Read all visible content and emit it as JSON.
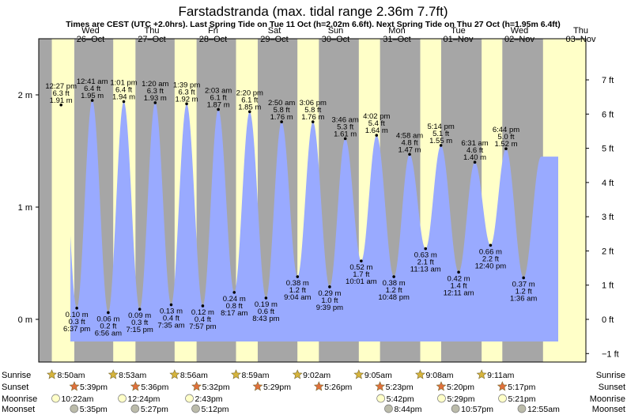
{
  "page": {
    "title": "Farstadstranda (max. tidal range 2.36m 7.7ft)",
    "subtitle": "Times are CEST (UTC +2.0hrs). Last Spring Tide on Tue 11 Oct (h=2.02m 6.6ft). Next Spring Tide on Thu 27 Oct (h=1.95m 6.4ft)"
  },
  "colors": {
    "night": "#a6a6a6",
    "day": "#ffffc8",
    "tide_fill": "#99aaff",
    "day_label": "#e00000",
    "sun_star": "#d6b43c",
    "sunset_star": "#e0703c",
    "moonrise": "#ffffc8",
    "moonset": "#bbbbaa"
  },
  "chart_data": {
    "type": "area",
    "title": "Farstadstranda (max. tidal range 2.36m 7.7ft)",
    "y_left_ticks": [
      "0 m",
      "1 m",
      "2 m"
    ],
    "y_right_ticks": [
      "−1 ft",
      "0 ft",
      "1 ft",
      "2 ft",
      "3 ft",
      "4 ft",
      "5 ft",
      "6 ft",
      "7 ft"
    ],
    "days": [
      {
        "dow": "Wed",
        "date": "26–Oct"
      },
      {
        "dow": "Thu",
        "date": "27–Oct"
      },
      {
        "dow": "Fri",
        "date": "28–Oct"
      },
      {
        "dow": "Sat",
        "date": "29–Oct"
      },
      {
        "dow": "Sun",
        "date": "30–Oct"
      },
      {
        "dow": "Mon",
        "date": "31–Oct"
      },
      {
        "dow": "Tue",
        "date": "01–Nov"
      },
      {
        "dow": "Wed",
        "date": "02–Nov"
      },
      {
        "dow": "Thu",
        "date": "03–Nov"
      }
    ],
    "tides": [
      {
        "type": "high",
        "time": "12:27 pm",
        "ft": "6.3 ft",
        "m": "1.91 m",
        "day": 0,
        "hour": 12.45,
        "h": 1.91
      },
      {
        "type": "low",
        "time": "6:37 pm",
        "ft": "0.3 ft",
        "m": "0.10 m",
        "day": 0,
        "hour": 18.62,
        "h": 0.1
      },
      {
        "type": "high",
        "time": "12:41 am",
        "ft": "6.4 ft",
        "m": "1.95 m",
        "day": 1,
        "hour": 0.68,
        "h": 1.95
      },
      {
        "type": "low",
        "time": "6:56 am",
        "ft": "0.2 ft",
        "m": "0.06 m",
        "day": 1,
        "hour": 6.93,
        "h": 0.06
      },
      {
        "type": "high",
        "time": "1:01 pm",
        "ft": "6.4 ft",
        "m": "1.94 m",
        "day": 1,
        "hour": 13.02,
        "h": 1.94
      },
      {
        "type": "low",
        "time": "7:15 pm",
        "ft": "0.3 ft",
        "m": "0.09 m",
        "day": 1,
        "hour": 19.25,
        "h": 0.09
      },
      {
        "type": "high",
        "time": "1:20 am",
        "ft": "6.3 ft",
        "m": "1.93 m",
        "day": 2,
        "hour": 1.33,
        "h": 1.93
      },
      {
        "type": "low",
        "time": "7:35 am",
        "ft": "0.4 ft",
        "m": "0.13 m",
        "day": 2,
        "hour": 7.58,
        "h": 0.13
      },
      {
        "type": "high",
        "time": "1:39 pm",
        "ft": "6.3 ft",
        "m": "1.92 m",
        "day": 2,
        "hour": 13.65,
        "h": 1.92
      },
      {
        "type": "low",
        "time": "7:57 pm",
        "ft": "0.4 ft",
        "m": "0.12 m",
        "day": 2,
        "hour": 19.95,
        "h": 0.12
      },
      {
        "type": "high",
        "time": "2:03 am",
        "ft": "6.1 ft",
        "m": "1.87 m",
        "day": 3,
        "hour": 2.05,
        "h": 1.87
      },
      {
        "type": "low",
        "time": "8:17 am",
        "ft": "0.8 ft",
        "m": "0.24 m",
        "day": 3,
        "hour": 8.28,
        "h": 0.24
      },
      {
        "type": "high",
        "time": "2:20 pm",
        "ft": "6.1 ft",
        "m": "1.85 m",
        "day": 3,
        "hour": 14.33,
        "h": 1.85
      },
      {
        "type": "low",
        "time": "8:43 pm",
        "ft": "0.6 ft",
        "m": "0.19 m",
        "day": 3,
        "hour": 20.72,
        "h": 0.19
      },
      {
        "type": "high",
        "time": "2:50 am",
        "ft": "5.8 ft",
        "m": "1.76 m",
        "day": 4,
        "hour": 2.83,
        "h": 1.76
      },
      {
        "type": "low",
        "time": "9:04 am",
        "ft": "1.2 ft",
        "m": "0.38 m",
        "day": 4,
        "hour": 9.07,
        "h": 0.38
      },
      {
        "type": "high",
        "time": "3:06 pm",
        "ft": "5.8 ft",
        "m": "1.76 m",
        "day": 4,
        "hour": 15.1,
        "h": 1.76
      },
      {
        "type": "low",
        "time": "9:39 pm",
        "ft": "1.0 ft",
        "m": "0.29 m",
        "day": 4,
        "hour": 21.65,
        "h": 0.29
      },
      {
        "type": "high",
        "time": "3:46 am",
        "ft": "5.3 ft",
        "m": "1.61 m",
        "day": 5,
        "hour": 3.77,
        "h": 1.61
      },
      {
        "type": "low",
        "time": "10:01 am",
        "ft": "1.7 ft",
        "m": "0.52 m",
        "day": 5,
        "hour": 10.02,
        "h": 0.52
      },
      {
        "type": "high",
        "time": "4:02 pm",
        "ft": "5.4 ft",
        "m": "1.64 m",
        "day": 5,
        "hour": 16.03,
        "h": 1.64
      },
      {
        "type": "low",
        "time": "10:48 pm",
        "ft": "1.2 ft",
        "m": "0.38 m",
        "day": 5,
        "hour": 22.8,
        "h": 0.38
      },
      {
        "type": "high",
        "time": "4:58 am",
        "ft": "4.8 ft",
        "m": "1.47 m",
        "day": 6,
        "hour": 4.97,
        "h": 1.47
      },
      {
        "type": "low",
        "time": "11:13 am",
        "ft": "2.1 ft",
        "m": "0.63 m",
        "day": 6,
        "hour": 11.22,
        "h": 0.63
      },
      {
        "type": "high",
        "time": "5:14 pm",
        "ft": "5.1 ft",
        "m": "1.55 m",
        "day": 6,
        "hour": 17.23,
        "h": 1.55
      },
      {
        "type": "low",
        "time": "12:11 am",
        "ft": "1.4 ft",
        "m": "0.42 m",
        "day": 7,
        "hour": 0.18,
        "h": 0.42
      },
      {
        "type": "high",
        "time": "6:31 am",
        "ft": "4.6 ft",
        "m": "1.40 m",
        "day": 7,
        "hour": 6.52,
        "h": 1.4
      },
      {
        "type": "low",
        "time": "12:40 pm",
        "ft": "2.2 ft",
        "m": "0.66 m",
        "day": 7,
        "hour": 12.67,
        "h": 0.66
      },
      {
        "type": "high",
        "time": "6:44 pm",
        "ft": "5.0 ft",
        "m": "1.52 m",
        "day": 7,
        "hour": 18.73,
        "h": 1.52
      },
      {
        "type": "low",
        "time": "1:36 am",
        "ft": "1.2 ft",
        "m": "0.37 m",
        "day": 8,
        "hour": 1.6,
        "h": 0.37
      }
    ],
    "sun_moon": [
      {
        "sunrise": "8:50am",
        "sunset": "5:39pm",
        "moonrise": "10:22am",
        "moonset": "5:35pm"
      },
      {
        "sunrise": "8:53am",
        "sunset": "5:36pm",
        "moonrise": "12:24pm",
        "moonset": "5:27pm"
      },
      {
        "sunrise": "8:56am",
        "sunset": "5:32pm",
        "moonrise": "2:43pm",
        "moonset": "5:12pm"
      },
      {
        "sunrise": "8:59am",
        "sunset": "5:29pm",
        "moonrise": "",
        "moonset": ""
      },
      {
        "sunrise": "9:02am",
        "sunset": "5:26pm",
        "moonrise": "",
        "moonset": ""
      },
      {
        "sunrise": "9:05am",
        "sunset": "5:23pm",
        "moonrise": "5:42pm",
        "moonset": "8:44pm"
      },
      {
        "sunrise": "9:08am",
        "sunset": "5:20pm",
        "moonrise": "5:29pm",
        "moonset": "10:57pm"
      },
      {
        "sunrise": "9:11am",
        "sunset": "5:17pm",
        "moonrise": "5:21pm",
        "moonset": "12:55am"
      }
    ],
    "row_labels": [
      "Sunrise",
      "Sunset",
      "Moonrise",
      "Moonset"
    ]
  }
}
